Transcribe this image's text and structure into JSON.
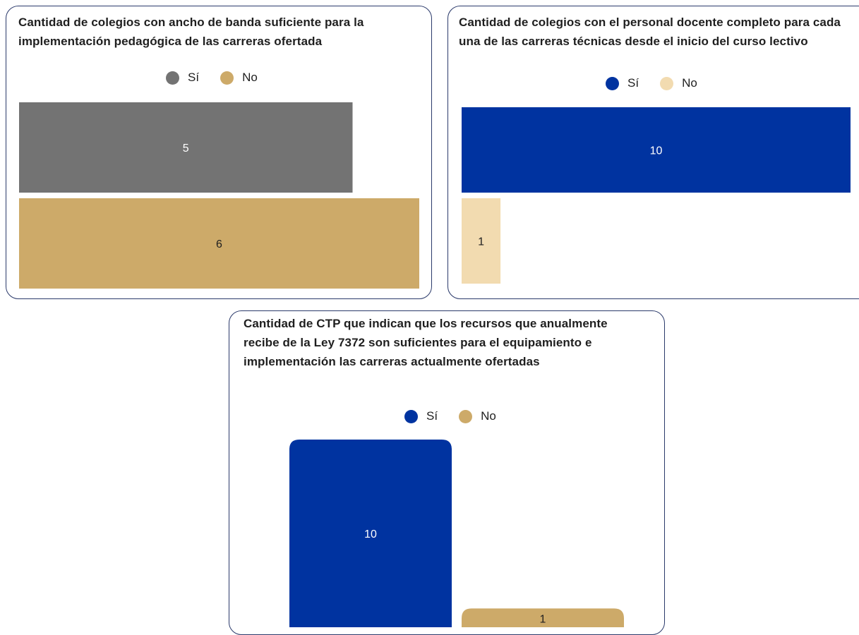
{
  "chart_data": [
    {
      "type": "bar",
      "orientation": "horizontal",
      "title": "Cantidad de colegios con ancho de banda suficiente para la implementación pedagógica de las carreras ofertada",
      "categories": [
        "Sí",
        "No"
      ],
      "values": [
        5,
        6
      ],
      "colors": [
        "#737373",
        "#cdaa69"
      ],
      "label_colors": [
        "#ffffff",
        "#1f1f1f"
      ],
      "legend_position": "top",
      "grid": false
    },
    {
      "type": "bar",
      "orientation": "horizontal",
      "title": "Cantidad de colegios con el personal docente completo para cada una de las carreras técnicas desde el inicio del curso lectivo",
      "categories": [
        "Sí",
        "No"
      ],
      "values": [
        10,
        1
      ],
      "colors": [
        "#0033a0",
        "#f2dbb0"
      ],
      "label_colors": [
        "#ffffff",
        "#1f1f1f"
      ],
      "legend_position": "top",
      "grid": false
    },
    {
      "type": "bar",
      "orientation": "vertical",
      "title": "Cantidad de CTP que indican que los recursos que anualmente recibe de la Ley 7372 son suficientes para el equipamiento e implementación las carreras actualmente ofertadas",
      "categories": [
        "Sí",
        "No"
      ],
      "values": [
        10,
        1
      ],
      "colors": [
        "#0033a0",
        "#cdaa69"
      ],
      "label_colors": [
        "#ffffff",
        "#1f1f1f"
      ],
      "legend_position": "top",
      "grid": false
    }
  ]
}
